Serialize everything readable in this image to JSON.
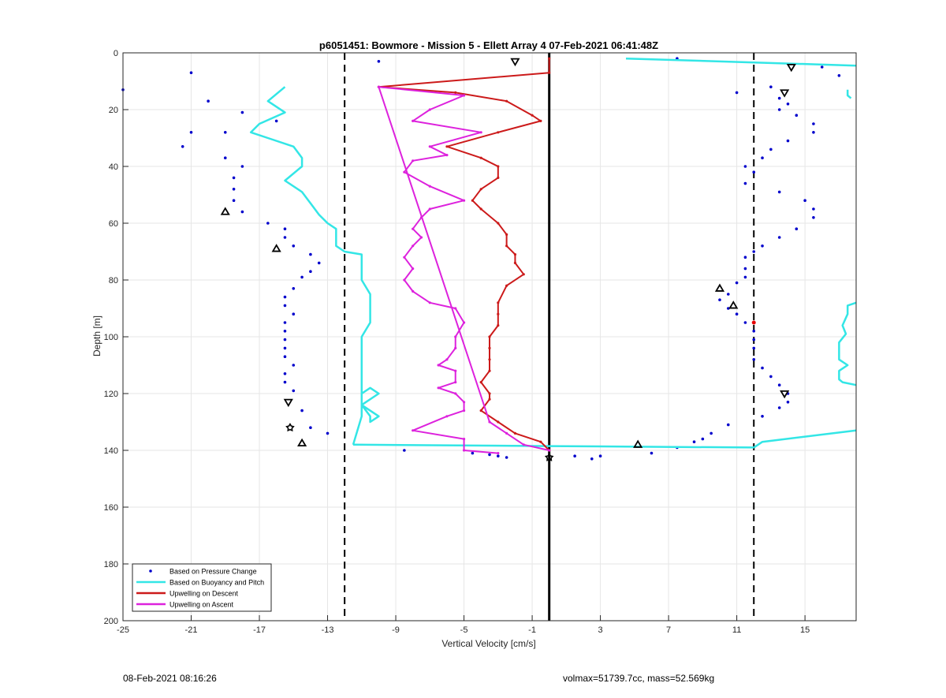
{
  "chart_data": {
    "type": "line",
    "title": "p6051451: Bowmore - Mission 5 - Ellett Array 4 07-Feb-2021 06:41:48Z",
    "xlabel": "Vertical Velocity [cm/s]",
    "ylabel": "Depth [m]",
    "xlim": [
      -25,
      18
    ],
    "ylim": [
      0,
      200
    ],
    "y_reversed": true,
    "grid": true,
    "xticks": [
      -25,
      -21,
      -17,
      -13,
      -9,
      -5,
      -1,
      3,
      7,
      11,
      15
    ],
    "yticks": [
      0,
      20,
      40,
      60,
      80,
      100,
      120,
      140,
      160,
      180,
      200
    ],
    "legend_position": "bottom-left",
    "vertical_lines": [
      {
        "x": -12,
        "style": "dashed",
        "color": "#000000"
      },
      {
        "x": 12,
        "style": "dashed",
        "color": "#000000"
      },
      {
        "x": 0,
        "style": "solid",
        "color": "#000000"
      }
    ],
    "series": [
      {
        "name": "Based on Pressure Change",
        "kind": "points",
        "color": "#0000cc",
        "x": [
          -25,
          -21,
          -20,
          -18,
          -16,
          -19,
          -21,
          -21.5,
          -19,
          -18,
          -18.5,
          -18.5,
          -18.5,
          -18,
          -16.5,
          -15.5,
          -15.5,
          -15,
          -14,
          -13.5,
          -14,
          -14.5,
          -15,
          -15.5,
          -15.5,
          -15,
          -15.5,
          -15.5,
          -15.5,
          -15.5,
          -15.5,
          -15,
          -15.5,
          -15.5,
          -15,
          -14.5,
          -14,
          -13,
          -8.5,
          -4.5,
          -3.5,
          -3,
          -2.5,
          -10,
          7.5,
          16,
          17,
          13,
          11,
          13.5,
          14,
          13.5,
          14.5,
          15.5,
          15.5,
          14,
          13,
          12.5,
          11.5,
          12,
          11.5,
          13.5,
          15,
          15.5,
          15.5,
          14.5,
          13.5,
          12.5,
          12,
          11.5,
          11.5,
          11.5,
          11,
          10.5,
          10,
          10.5,
          11,
          11.5,
          12,
          12,
          12,
          12,
          12.5,
          13,
          13.5,
          14,
          14,
          13.5,
          12.5,
          10.5,
          9.5,
          9,
          8.5,
          7.5,
          6,
          1.5,
          2.5,
          3
        ],
        "y": [
          13,
          7,
          17,
          21,
          24,
          28,
          28,
          33,
          37,
          40,
          44,
          48,
          52,
          56,
          60,
          62,
          65,
          68,
          71,
          74,
          77,
          79,
          83,
          86,
          89,
          92,
          95,
          98,
          101,
          104,
          107,
          110,
          113,
          116,
          119,
          126,
          132,
          134,
          140,
          141,
          141.5,
          142,
          142.5,
          3,
          2,
          5,
          8,
          12,
          14,
          16,
          18,
          20,
          22,
          25,
          28,
          31,
          34,
          37,
          40,
          42,
          46,
          49,
          52,
          55,
          58,
          62,
          65,
          68,
          70,
          72,
          76,
          79,
          81,
          85,
          87,
          90,
          92,
          95,
          98,
          101,
          104,
          108,
          111,
          114,
          117,
          120,
          123,
          125,
          128,
          131,
          134,
          136,
          137,
          139,
          141,
          142,
          143,
          142
        ]
      },
      {
        "name": "Based on Buoyancy and Pitch",
        "kind": "line",
        "color": "#33e6e6",
        "segments": [
          {
            "x": [
              -15.5,
              -16.5,
              -15.5,
              -17,
              -17.5,
              -16.5,
              -15,
              -14.5,
              -14.5,
              -15.5,
              -14.5,
              -14,
              -13.5,
              -13,
              -12.5,
              -12.5,
              -12,
              -11,
              -11,
              -11,
              -10.5,
              -10.5,
              -10.5,
              -11,
              -11,
              -11,
              -11,
              -11,
              -11,
              -11,
              -11,
              -11,
              -10.5,
              -10.5,
              -10,
              -11,
              -10,
              -10.5,
              -11,
              -11,
              -11.5
            ],
            "y": [
              12,
              17,
              21,
              25,
              28,
              30,
              33,
              37,
              40,
              45,
              49,
              53,
              57,
              60,
              62,
              68,
              70,
              71,
              74,
              80,
              85,
              90,
              95,
              100,
              104,
              108,
              112,
              116,
              118,
              120,
              122,
              124,
              128,
              130,
              128,
              124,
              120,
              118,
              120,
              128,
              138
            ]
          },
          {
            "x": [
              -11.5,
              0,
              12
            ],
            "y": [
              138,
              138.5,
              139
            ]
          },
          {
            "x": [
              12,
              12.5,
              18
            ],
            "y": [
              139,
              137,
              133
            ]
          },
          {
            "x": [
              4.5,
              18
            ],
            "y": [
              2,
              4.5
            ]
          },
          {
            "x": [
              17.5,
              17.5,
              17.5,
              17.7
            ],
            "y": [
              13,
              14,
              15,
              16
            ]
          },
          {
            "x": [
              18,
              17.5,
              17.5,
              17.2,
              17.4,
              17,
              17,
              17,
              17.5,
              17,
              17,
              17.2,
              18
            ],
            "y": [
              88,
              89,
              92,
              96,
              99,
              102,
              105,
              108,
              110,
              112,
              115,
              116,
              117
            ]
          }
        ]
      },
      {
        "name": "Upwelling on Descent",
        "kind": "line",
        "color": "#cc1a1a",
        "x": [
          0,
          0,
          -10,
          -5.5,
          -2.5,
          -1,
          -0.5,
          -3,
          -6,
          -4,
          -3,
          -3,
          -4,
          -4.5,
          -4,
          -3,
          -2.5,
          -2.5,
          -2,
          -2,
          -1.5,
          -2.5,
          -3,
          -3,
          -3,
          -3.5,
          -3.5,
          -3.5,
          -3.5,
          -4,
          -3.5,
          -3.5,
          -4,
          -3,
          -2,
          -0.5,
          0
        ],
        "y": [
          2,
          7,
          12,
          14,
          17,
          22,
          24,
          28,
          33,
          37,
          40,
          44,
          48,
          52,
          55,
          60,
          64,
          68,
          71,
          74,
          78,
          82,
          88,
          92,
          96,
          100,
          104,
          108,
          112,
          116,
          120,
          122,
          126,
          130,
          134,
          137,
          140
        ]
      },
      {
        "name": "Upwelling on Ascent",
        "kind": "line",
        "color": "#dd22dd",
        "x": [
          0,
          -1.5,
          -2.5,
          -3.5,
          -10,
          -5,
          -7,
          -8,
          -4,
          -7,
          -6,
          -8,
          -8.5,
          -7,
          -5,
          -7,
          -7.5,
          -8,
          -7.5,
          -8,
          -8.5,
          -8,
          -8.5,
          -8,
          -7,
          -5.5,
          -5,
          -5.5,
          -5.5,
          -6,
          -6.5,
          -5.5,
          -5.5,
          -6.5,
          -5.5,
          -5,
          -5,
          -6,
          -8,
          -5,
          -5,
          -3
        ],
        "y": [
          140,
          138,
          134,
          130,
          12,
          15,
          20,
          24,
          28,
          33,
          36,
          38,
          42,
          47,
          52,
          55,
          58,
          62,
          65,
          68,
          72,
          76,
          80,
          84,
          88,
          90,
          95,
          100,
          104,
          108,
          110,
          112,
          116,
          118,
          120,
          123,
          126,
          128,
          133,
          136,
          140,
          141
        ]
      }
    ],
    "markers": [
      {
        "shape": "triangle-up",
        "x": [
          -19,
          -16,
          -14.5,
          10,
          10.8,
          5.2
        ],
        "y": [
          56,
          69,
          137.5,
          83,
          89,
          138
        ]
      },
      {
        "shape": "triangle-down",
        "x": [
          -2,
          14.2,
          13.8,
          -15.3,
          13.8
        ],
        "y": [
          3,
          5,
          14,
          123,
          120
        ]
      },
      {
        "shape": "star",
        "x": [
          -15.2,
          0
        ],
        "y": [
          132,
          142.5
        ]
      },
      {
        "shape": "dot-red",
        "x": [
          12
        ],
        "y": [
          95
        ]
      }
    ]
  },
  "footer": {
    "left": "08-Feb-2021 08:16:26",
    "right": "volmax=51739.7cc, mass=52.569kg"
  }
}
